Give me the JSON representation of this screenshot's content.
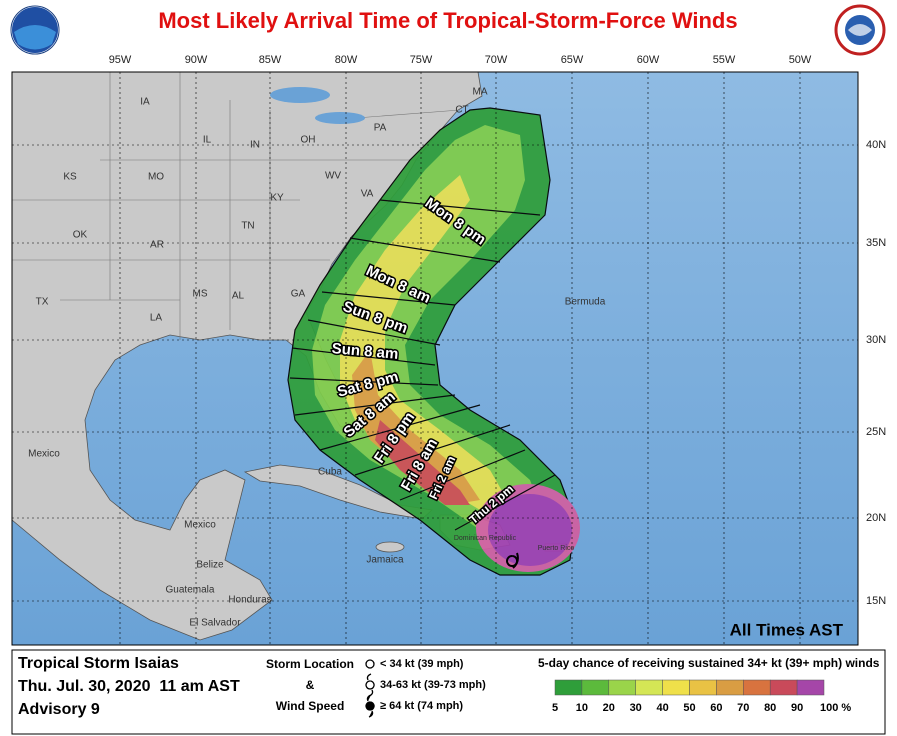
{
  "header": {
    "title": "Most Likely Arrival Time of Tropical-Storm-Force Winds"
  },
  "map": {
    "longitude_labels": [
      "95W",
      "90W",
      "85W",
      "80W",
      "75W",
      "70W",
      "65W",
      "60W",
      "55W",
      "50W"
    ],
    "latitude_labels": [
      "40N",
      "35N",
      "30N",
      "25N",
      "20N",
      "15N"
    ],
    "place_labels": [
      "IA",
      "IL",
      "IN",
      "OH",
      "PA",
      "MA",
      "CT",
      "KS",
      "MO",
      "KY",
      "WV",
      "VA",
      "TN",
      "OK",
      "AR",
      "MS",
      "AL",
      "GA",
      "TX",
      "LA",
      "Mexico",
      "Mexico",
      "Cuba",
      "Jamaica",
      "Belize",
      "Guatemala",
      "Honduras",
      "El Salvador",
      "Bermuda",
      "Dominican Republic",
      "Puerto Rico"
    ],
    "arrival_times": [
      "Mon 8 pm",
      "Mon 8 am",
      "Sun 8 pm",
      "Sun 8 am",
      "Sat 8 pm",
      "Sat 8 am",
      "Fri 8 pm",
      "Fri 8 am",
      "Fri 2 am",
      "Thu 2 pm"
    ],
    "note": "All Times AST"
  },
  "footer": {
    "storm_name": "Tropical Storm Isaias",
    "date": "Thu. Jul. 30, 2020  11 am AST",
    "advisory": "Advisory 9",
    "key_title": [
      "Storm Location",
      "&",
      "Wind Speed"
    ],
    "key_items": [
      "< 34 kt (39 mph)",
      "34-63 kt (39-73 mph)",
      "≥ 64 kt (74 mph)"
    ],
    "scale_title": "5-day chance of receiving sustained 34+ kt (39+ mph) winds",
    "scale_labels": [
      "5",
      "10",
      "20",
      "30",
      "40",
      "50",
      "60",
      "70",
      "80",
      "90",
      "100 %"
    ],
    "scale_colors": [
      "#2f9e3a",
      "#5cba3c",
      "#9ad44a",
      "#d4e655",
      "#efe04a",
      "#e9c244",
      "#d99d43",
      "#d8733f",
      "#c94a5a",
      "#a546a8"
    ]
  }
}
